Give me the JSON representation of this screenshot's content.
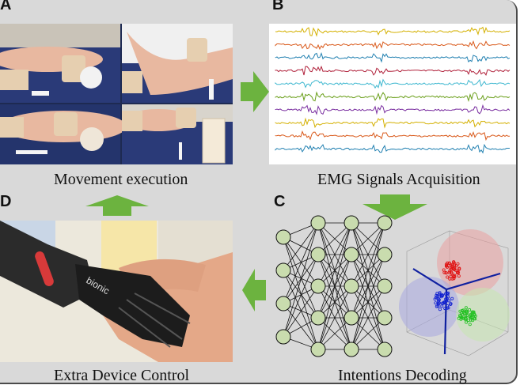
{
  "panels": {
    "a": {
      "label": "A",
      "caption": "Movement execution"
    },
    "b": {
      "label": "B",
      "caption": "EMG Signals Acquisition"
    },
    "c": {
      "label": "C",
      "caption": "Intentions Decoding"
    },
    "d": {
      "label": "D",
      "caption": "Extra Device Control"
    }
  },
  "emg_channel_colors": [
    "#d4b000",
    "#d9591a",
    "#1f7fb0",
    "#b0203a",
    "#3fb8d0",
    "#6a9f1a",
    "#7a2fa0",
    "#d4b000",
    "#d9591a",
    "#1f7fb0"
  ],
  "arrow_color": "#6cb33f",
  "network_layers": [
    4,
    5,
    5,
    5
  ],
  "cluster_colors": {
    "red": "#e01010",
    "blue": "#1020d0",
    "green": "#20c020"
  },
  "bionic_text": "bionic"
}
